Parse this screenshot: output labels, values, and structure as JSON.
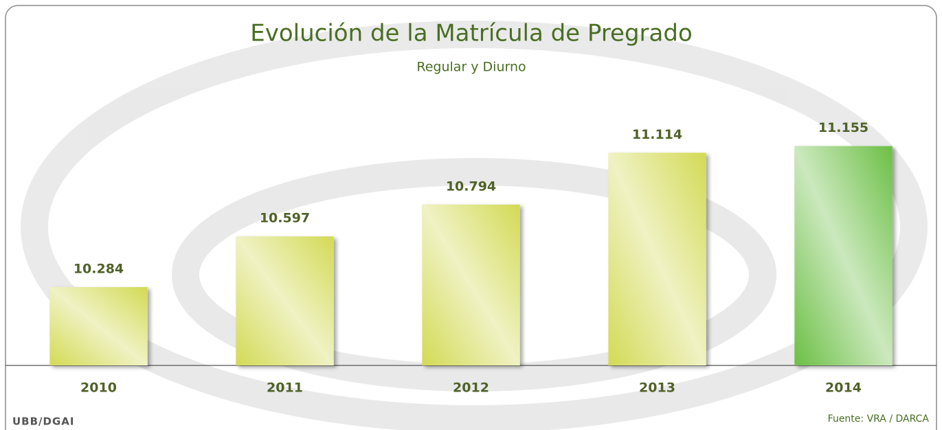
{
  "chart_data": {
    "type": "bar",
    "title": "Evolución de la Matrícula de Pregrado",
    "subtitle": "Regular y Diurno",
    "categories": [
      "2010",
      "2011",
      "2012",
      "2013",
      "2014"
    ],
    "values": [
      10284,
      10597,
      10794,
      11114,
      11155
    ],
    "value_labels": [
      "10.284",
      "10.597",
      "10.794",
      "11.114",
      "11.155"
    ],
    "colors": [
      "#d3da55",
      "#d3da55",
      "#d3da55",
      "#d3da55",
      "#6cbf45"
    ],
    "ylim": [
      9800,
      11400
    ],
    "grid": false,
    "credit": "UBB/DGAI",
    "source": "Fuente: VRA / DARCA"
  }
}
